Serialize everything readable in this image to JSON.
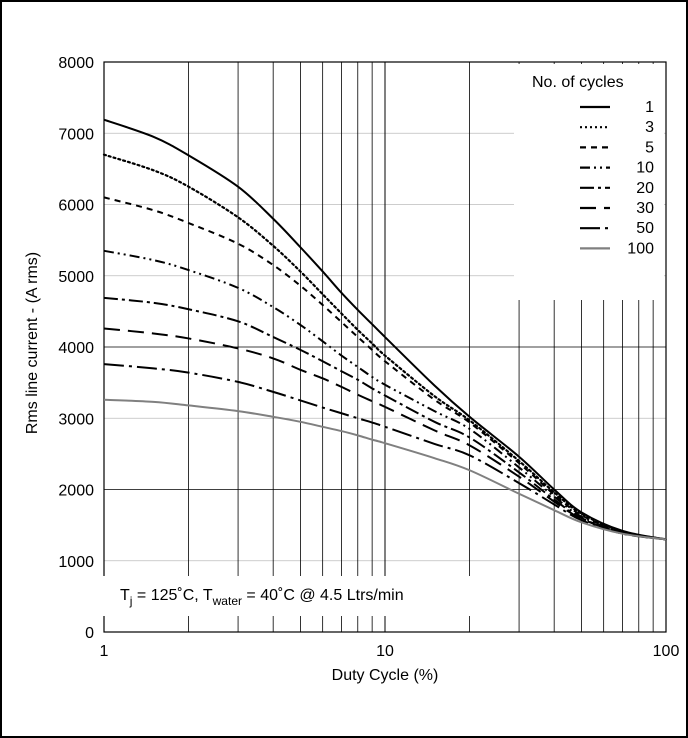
{
  "chart_data": {
    "type": "line",
    "title": "",
    "xlabel": "Duty Cycle (%)",
    "ylabel": "Rms line current - (A rms)",
    "x_scale": "log",
    "xlim": [
      1,
      100
    ],
    "ylim": [
      0,
      8000
    ],
    "x_ticks": [
      1,
      10,
      100
    ],
    "x_tick_labels": [
      "1",
      "10",
      "100"
    ],
    "y_ticks": [
      0,
      1000,
      2000,
      3000,
      4000,
      5000,
      6000,
      7000,
      8000
    ],
    "y_tick_labels": [
      "0",
      "1000",
      "2000",
      "3000",
      "4000",
      "5000",
      "6000",
      "7000",
      "8000"
    ],
    "grid": true,
    "legend": {
      "title": "No. of cycles",
      "placement": "top-right"
    },
    "annotation": {
      "t_main": "T",
      "t_sub": "j",
      "mid": " = 125˚C, T",
      "water_sub": "water",
      "tail": " = 40˚C @ 4.5 Ltrs/min"
    },
    "series": [
      {
        "name": "1",
        "style": "solid",
        "color": "#000000",
        "points": [
          [
            1,
            7190
          ],
          [
            1.5,
            6950
          ],
          [
            2,
            6690
          ],
          [
            3,
            6250
          ],
          [
            4,
            5800
          ],
          [
            5,
            5400
          ],
          [
            6,
            5060
          ],
          [
            7,
            4760
          ],
          [
            8,
            4520
          ],
          [
            9,
            4320
          ],
          [
            10,
            4140
          ],
          [
            15,
            3460
          ],
          [
            20,
            3020
          ],
          [
            30,
            2460
          ],
          [
            40,
            2000
          ],
          [
            50,
            1680
          ],
          [
            70,
            1420
          ],
          [
            100,
            1300
          ]
        ]
      },
      {
        "name": "3",
        "style": "dotted",
        "color": "#000000",
        "points": [
          [
            1,
            6700
          ],
          [
            1.5,
            6480
          ],
          [
            2,
            6250
          ],
          [
            3,
            5820
          ],
          [
            4,
            5420
          ],
          [
            5,
            5060
          ],
          [
            6,
            4740
          ],
          [
            7,
            4470
          ],
          [
            8,
            4240
          ],
          [
            9,
            4050
          ],
          [
            10,
            3880
          ],
          [
            15,
            3310
          ],
          [
            20,
            2970
          ],
          [
            30,
            2400
          ],
          [
            40,
            1960
          ],
          [
            50,
            1660
          ],
          [
            70,
            1410
          ],
          [
            100,
            1300
          ]
        ]
      },
      {
        "name": "5",
        "style": "dashed-short",
        "color": "#000000",
        "points": [
          [
            1,
            6100
          ],
          [
            1.5,
            5920
          ],
          [
            2,
            5740
          ],
          [
            3,
            5450
          ],
          [
            4,
            5150
          ],
          [
            5,
            4860
          ],
          [
            6,
            4590
          ],
          [
            7,
            4350
          ],
          [
            8,
            4140
          ],
          [
            9,
            3960
          ],
          [
            10,
            3800
          ],
          [
            15,
            3260
          ],
          [
            20,
            2940
          ],
          [
            30,
            2370
          ],
          [
            40,
            1930
          ],
          [
            50,
            1640
          ],
          [
            70,
            1400
          ],
          [
            100,
            1300
          ]
        ]
      },
      {
        "name": "10",
        "style": "dash-dot-dot",
        "color": "#000000",
        "points": [
          [
            1,
            5350
          ],
          [
            1.5,
            5220
          ],
          [
            2,
            5080
          ],
          [
            3,
            4830
          ],
          [
            4,
            4560
          ],
          [
            5,
            4310
          ],
          [
            6,
            4080
          ],
          [
            7,
            3880
          ],
          [
            8,
            3720
          ],
          [
            9,
            3580
          ],
          [
            10,
            3470
          ],
          [
            15,
            3100
          ],
          [
            20,
            2850
          ],
          [
            30,
            2310
          ],
          [
            40,
            1900
          ],
          [
            50,
            1620
          ],
          [
            70,
            1400
          ],
          [
            100,
            1300
          ]
        ]
      },
      {
        "name": "20",
        "style": "dash-dot",
        "color": "#000000",
        "points": [
          [
            1,
            4690
          ],
          [
            1.5,
            4620
          ],
          [
            2,
            4530
          ],
          [
            3,
            4360
          ],
          [
            4,
            4140
          ],
          [
            5,
            3960
          ],
          [
            6,
            3800
          ],
          [
            7,
            3660
          ],
          [
            8,
            3540
          ],
          [
            9,
            3420
          ],
          [
            10,
            3320
          ],
          [
            15,
            2950
          ],
          [
            20,
            2730
          ],
          [
            30,
            2240
          ],
          [
            40,
            1860
          ],
          [
            50,
            1600
          ],
          [
            70,
            1390
          ],
          [
            100,
            1300
          ]
        ]
      },
      {
        "name": "30",
        "style": "dashed-long",
        "color": "#000000",
        "points": [
          [
            1,
            4260
          ],
          [
            1.5,
            4190
          ],
          [
            2,
            4120
          ],
          [
            3,
            3980
          ],
          [
            4,
            3840
          ],
          [
            5,
            3680
          ],
          [
            6,
            3560
          ],
          [
            7,
            3440
          ],
          [
            8,
            3330
          ],
          [
            9,
            3240
          ],
          [
            10,
            3160
          ],
          [
            15,
            2830
          ],
          [
            20,
            2620
          ],
          [
            30,
            2180
          ],
          [
            40,
            1830
          ],
          [
            50,
            1590
          ],
          [
            70,
            1390
          ],
          [
            100,
            1300
          ]
        ]
      },
      {
        "name": "50",
        "style": "long-dash-dot",
        "color": "#000000",
        "points": [
          [
            1,
            3760
          ],
          [
            1.5,
            3700
          ],
          [
            2,
            3640
          ],
          [
            3,
            3510
          ],
          [
            4,
            3370
          ],
          [
            5,
            3250
          ],
          [
            6,
            3150
          ],
          [
            7,
            3070
          ],
          [
            8,
            3000
          ],
          [
            9,
            2940
          ],
          [
            10,
            2880
          ],
          [
            15,
            2640
          ],
          [
            20,
            2480
          ],
          [
            30,
            2090
          ],
          [
            40,
            1790
          ],
          [
            50,
            1570
          ],
          [
            70,
            1380
          ],
          [
            100,
            1300
          ]
        ]
      },
      {
        "name": "100",
        "style": "solid",
        "color": "#808080",
        "points": [
          [
            1,
            3260
          ],
          [
            1.5,
            3230
          ],
          [
            2,
            3180
          ],
          [
            3,
            3100
          ],
          [
            4,
            3020
          ],
          [
            5,
            2950
          ],
          [
            6,
            2880
          ],
          [
            7,
            2820
          ],
          [
            8,
            2760
          ],
          [
            9,
            2700
          ],
          [
            10,
            2650
          ],
          [
            15,
            2440
          ],
          [
            20,
            2270
          ],
          [
            30,
            1940
          ],
          [
            40,
            1710
          ],
          [
            50,
            1540
          ],
          [
            70,
            1380
          ],
          [
            100,
            1300
          ]
        ]
      }
    ]
  }
}
